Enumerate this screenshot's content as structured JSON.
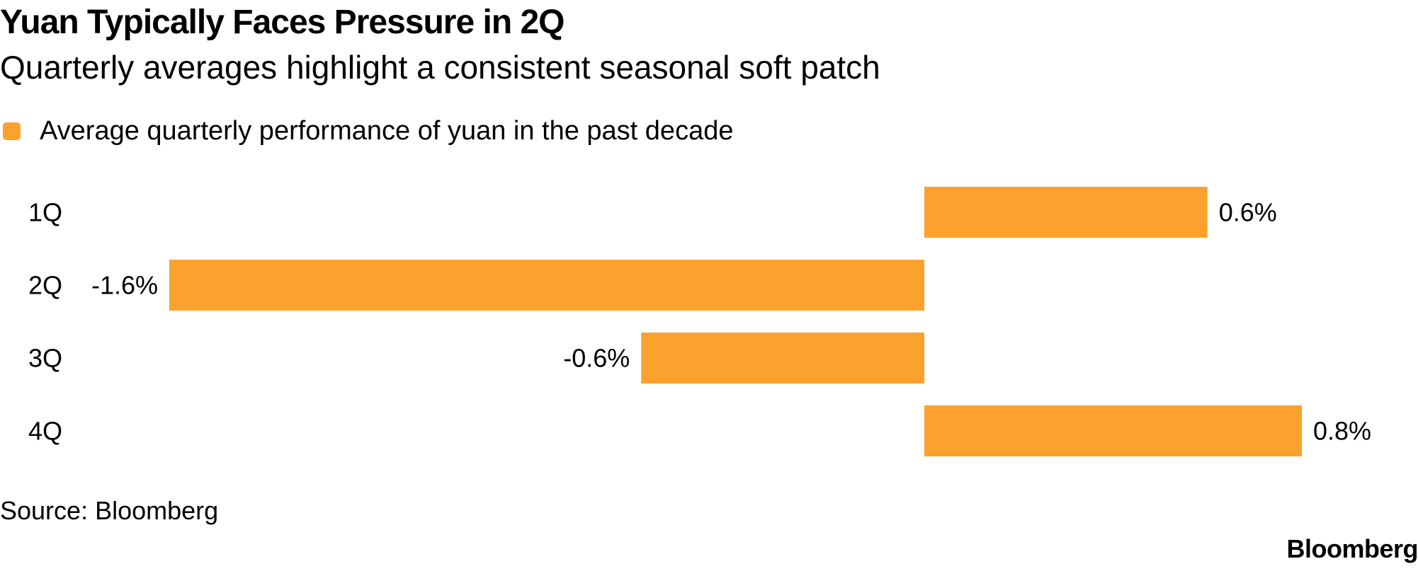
{
  "header": {
    "title": "Yuan Typically Faces Pressure in 2Q",
    "subtitle": "Quarterly averages highlight a consistent seasonal soft patch"
  },
  "legend": {
    "label": "Average quarterly performance of yuan in the past decade",
    "color": "#FBA22E"
  },
  "footer": {
    "source": "Source: Bloomberg",
    "brand": "Bloomberg"
  },
  "chart_data": {
    "type": "bar",
    "orientation": "horizontal",
    "title": "Yuan Typically Faces Pressure in 2Q",
    "subtitle": "Quarterly averages highlight a consistent seasonal soft patch",
    "categories": [
      "1Q",
      "2Q",
      "3Q",
      "4Q"
    ],
    "series": [
      {
        "name": "Average quarterly performance of yuan in the past decade",
        "values": [
          0.6,
          -1.6,
          -0.6,
          0.8
        ],
        "labels": [
          "0.6%",
          "-1.6%",
          "-0.6%",
          "0.8%"
        ],
        "color": "#FBA22E"
      }
    ],
    "xlim": [
      -1.6,
      0.8
    ],
    "xlabel": "",
    "ylabel": "",
    "grid": false,
    "legend_position": "top-left"
  }
}
